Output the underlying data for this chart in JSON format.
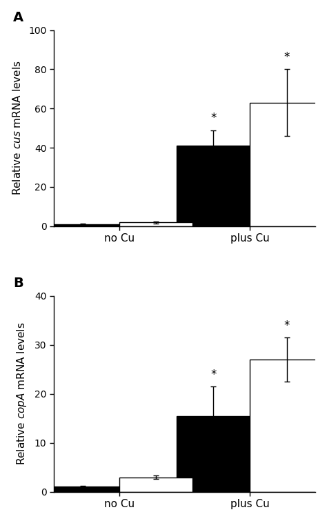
{
  "panel_A": {
    "label": "A",
    "ylabel_parts": [
      "Relative ",
      "cus",
      " mRNA levels"
    ],
    "ylim": [
      0,
      100
    ],
    "yticks": [
      0,
      20,
      40,
      60,
      80,
      100
    ],
    "groups": [
      "no Cu",
      "plus Cu"
    ],
    "black_bars": [
      1.0,
      41.0
    ],
    "white_bars": [
      2.0,
      63.0
    ],
    "black_errors": [
      0.3,
      8.0
    ],
    "white_errors": [
      0.5,
      17.0
    ],
    "star_black": [
      false,
      true
    ],
    "star_white": [
      false,
      true
    ]
  },
  "panel_B": {
    "label": "B",
    "ylabel_parts": [
      "Relative ",
      "copA",
      " mRNA levels"
    ],
    "ylim": [
      0,
      40
    ],
    "yticks": [
      0,
      10,
      20,
      30,
      40
    ],
    "groups": [
      "no Cu",
      "plus Cu"
    ],
    "black_bars": [
      1.1,
      15.5
    ],
    "white_bars": [
      3.0,
      27.0
    ],
    "black_errors": [
      0.2,
      6.0
    ],
    "white_errors": [
      0.3,
      4.5
    ],
    "star_black": [
      false,
      true
    ],
    "star_white": [
      false,
      true
    ]
  },
  "bar_width": 0.28,
  "group_positions": [
    0.25,
    0.75
  ],
  "black_color": "#000000",
  "white_color": "#ffffff",
  "edge_color": "#000000",
  "figsize": [
    4.74,
    7.55
  ],
  "dpi": 100
}
